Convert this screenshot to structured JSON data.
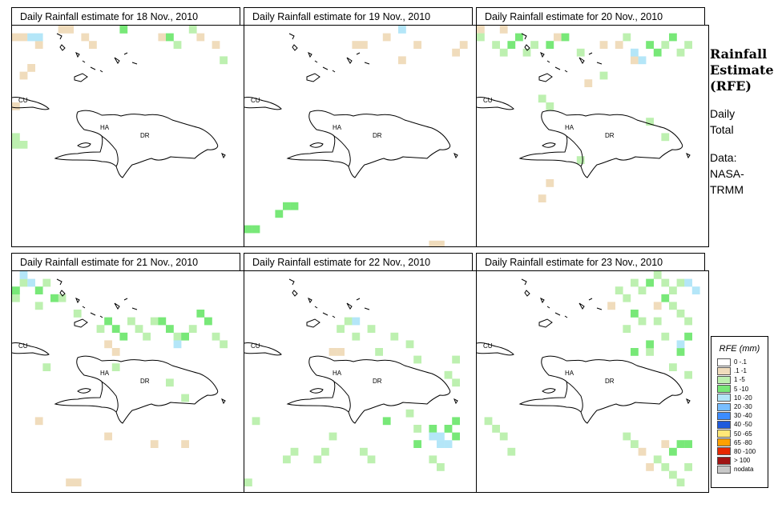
{
  "panels": [
    {
      "title": "Daily Rainfall estimate for  18 Nov., 2010"
    },
    {
      "title": "Daily Rainfall estimate for  19 Nov., 2010"
    },
    {
      "title": "Daily Rainfall estimate for  20 Nov., 2010"
    },
    {
      "title": "Daily Rainfall estimate for  21 Nov., 2010"
    },
    {
      "title": "Daily Rainfall estimate for  22 Nov., 2010"
    },
    {
      "title": "Daily Rainfall estimate for  23 Nov., 2010"
    }
  ],
  "map_labels": {
    "cu": "CU",
    "ha": "HA",
    "dr": "DR"
  },
  "side": {
    "title_1": "Rainfall",
    "title_2": "Estimate",
    "title_3": "(RFE)",
    "daily": "Daily",
    "total": "Total",
    "data_label": "Data:",
    "source_1": "NASA-",
    "source_2": "TRMM"
  },
  "legend": {
    "title": "RFE (mm)",
    "items": [
      {
        "label": "0 -.1",
        "color": "#ffffff"
      },
      {
        "label": ".1 -1",
        "color": "#f0dcbc"
      },
      {
        "label": "1 -5",
        "color": "#bdf0b0"
      },
      {
        "label": "5 -10",
        "color": "#78e878"
      },
      {
        "label": "10 -20",
        "color": "#b4e6f8"
      },
      {
        "label": "20 -30",
        "color": "#78beff"
      },
      {
        "label": "30 -40",
        "color": "#3c8cff"
      },
      {
        "label": "40 -50",
        "color": "#1e5adc"
      },
      {
        "label": "50 -65",
        "color": "#ffe878"
      },
      {
        "label": "65 -80",
        "color": "#ffa000"
      },
      {
        "label": "80 -100",
        "color": "#e62800"
      },
      {
        "label": "> 100",
        "color": "#a01414"
      },
      {
        "label": "nodata",
        "color": "#c8c8c8"
      }
    ]
  }
}
